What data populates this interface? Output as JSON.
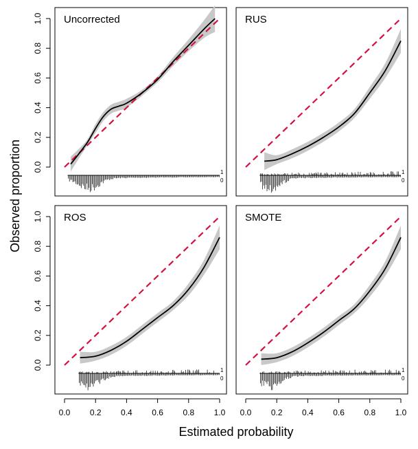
{
  "figure": {
    "xlabel": "Estimated probability",
    "ylabel": "Observed proportion"
  },
  "colors": {
    "ideal_line": "#d6103f",
    "curve": "#000000",
    "band": "#c8c8c8"
  },
  "chart_data": [
    {
      "type": "line",
      "title": "Uncorrected",
      "xlim": [
        0,
        1
      ],
      "ylim": [
        -0.12,
        1
      ],
      "xticks": [
        "0.0",
        "0.2",
        "0.4",
        "0.6",
        "0.8",
        "1.0"
      ],
      "yticks": [
        "0.0",
        "0.2",
        "0.4",
        "0.6",
        "0.8",
        "1.0"
      ],
      "ideal_line": {
        "x": [
          0,
          1
        ],
        "y": [
          0,
          1
        ]
      },
      "curve": {
        "x": [
          0.04,
          0.1,
          0.15,
          0.2,
          0.25,
          0.3,
          0.35,
          0.4,
          0.5,
          0.6,
          0.7,
          0.8,
          0.9,
          0.97
        ],
        "y": [
          0.02,
          0.1,
          0.17,
          0.26,
          0.34,
          0.39,
          0.41,
          0.43,
          0.5,
          0.59,
          0.71,
          0.82,
          0.93,
          1.0
        ]
      },
      "band_width": [
        0.05,
        0.03,
        0.02,
        0.03,
        0.03,
        0.03,
        0.03,
        0.03,
        0.02,
        0.02,
        0.03,
        0.04,
        0.06,
        0.09
      ],
      "spike_labels": [
        "1",
        "0"
      ],
      "show_x_ticks": false,
      "show_y_ticks": true
    },
    {
      "type": "line",
      "title": "RUS",
      "xlim": [
        0,
        1
      ],
      "ylim": [
        -0.12,
        1
      ],
      "xticks": [
        "0.0",
        "0.2",
        "0.4",
        "0.6",
        "0.8",
        "1.0"
      ],
      "yticks": [
        "0.0",
        "0.2",
        "0.4",
        "0.6",
        "0.8",
        "1.0"
      ],
      "ideal_line": {
        "x": [
          0,
          1
        ],
        "y": [
          0,
          1
        ]
      },
      "curve": {
        "x": [
          0.12,
          0.2,
          0.3,
          0.4,
          0.5,
          0.6,
          0.7,
          0.8,
          0.9,
          1.0
        ],
        "y": [
          0.04,
          0.05,
          0.09,
          0.14,
          0.2,
          0.27,
          0.36,
          0.5,
          0.65,
          0.85
        ]
      },
      "band_width": [
        0.06,
        0.03,
        0.03,
        0.03,
        0.03,
        0.03,
        0.03,
        0.04,
        0.05,
        0.08
      ],
      "spike_labels": [
        "1",
        "0"
      ],
      "show_x_ticks": false,
      "show_y_ticks": false
    },
    {
      "type": "line",
      "title": "ROS",
      "xlim": [
        0,
        1
      ],
      "ylim": [
        -0.12,
        1
      ],
      "xticks": [
        "0.0",
        "0.2",
        "0.4",
        "0.6",
        "0.8",
        "1.0"
      ],
      "yticks": [
        "0.0",
        "0.2",
        "0.4",
        "0.6",
        "0.8",
        "1.0"
      ],
      "ideal_line": {
        "x": [
          0,
          1
        ],
        "y": [
          0,
          1
        ]
      },
      "curve": {
        "x": [
          0.1,
          0.2,
          0.3,
          0.4,
          0.5,
          0.6,
          0.7,
          0.8,
          0.9,
          1.0
        ],
        "y": [
          0.05,
          0.06,
          0.1,
          0.16,
          0.24,
          0.32,
          0.4,
          0.51,
          0.66,
          0.86
        ]
      },
      "band_width": [
        0.04,
        0.03,
        0.03,
        0.03,
        0.03,
        0.03,
        0.03,
        0.04,
        0.05,
        0.08
      ],
      "spike_labels": [
        "1",
        "0"
      ],
      "show_x_ticks": true,
      "show_y_ticks": true
    },
    {
      "type": "line",
      "title": "SMOTE",
      "xlim": [
        0,
        1
      ],
      "ylim": [
        -0.12,
        1
      ],
      "xticks": [
        "0.0",
        "0.2",
        "0.4",
        "0.6",
        "0.8",
        "1.0"
      ],
      "yticks": [
        "0.0",
        "0.2",
        "0.4",
        "0.6",
        "0.8",
        "1.0"
      ],
      "ideal_line": {
        "x": [
          0,
          1
        ],
        "y": [
          0,
          1
        ]
      },
      "curve": {
        "x": [
          0.1,
          0.2,
          0.3,
          0.4,
          0.5,
          0.6,
          0.7,
          0.8,
          0.9,
          1.0
        ],
        "y": [
          0.04,
          0.05,
          0.09,
          0.15,
          0.22,
          0.3,
          0.38,
          0.5,
          0.65,
          0.86
        ]
      },
      "band_width": [
        0.04,
        0.03,
        0.03,
        0.03,
        0.03,
        0.03,
        0.03,
        0.04,
        0.05,
        0.08
      ],
      "spike_labels": [
        "1",
        "0"
      ],
      "show_x_ticks": true,
      "show_y_ticks": false
    }
  ]
}
